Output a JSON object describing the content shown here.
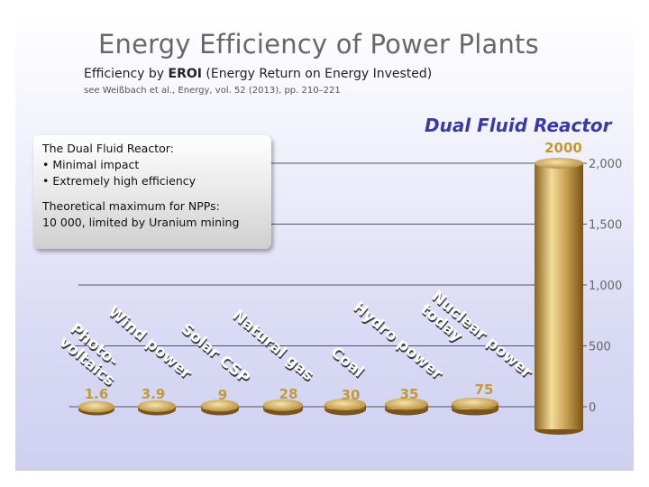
{
  "header": {
    "title": "Energy Efficiency of Power Plants",
    "subtitle_prefix": "Efficiency by ",
    "subtitle_bold": "EROI",
    "subtitle_suffix": " (Energy Return on Energy Invested)",
    "citation": "see Weißbach et al., Energy, vol. 52 (2013), pp. 210–221"
  },
  "highlight_label": "Dual Fluid Reactor",
  "infobox": {
    "line1": "The Dual Fluid Reactor:",
    "line2": "• Minimal impact",
    "line3": "• Extremely high efficiency",
    "line4": "Theoretical maximum for NPPs:",
    "line5": "10 000, limited by Uranium mining"
  },
  "colors": {
    "bar": "#c9a050",
    "bar_dark": "#8a6420",
    "bar_light": "#f3dc9a",
    "value": "#c29a3a",
    "highlight": "#3a3aa0"
  },
  "chart_data": {
    "type": "bar",
    "title": "Energy Efficiency of Power Plants",
    "categories": [
      "Photo-voltaics",
      "Wind power",
      "Solar CSP",
      "Natural gas",
      "Coal",
      "Hydro power",
      "Nuclear power today",
      "Dual Fluid Reactor"
    ],
    "category_lines": [
      [
        "Photo-",
        "voltaics"
      ],
      [
        "Wind power"
      ],
      [
        "Solar CSP"
      ],
      [
        "Natural gas"
      ],
      [
        "Coal"
      ],
      [
        "Hydro power"
      ],
      [
        "Nuclear power",
        "today"
      ],
      []
    ],
    "values": [
      1.6,
      3.9,
      9,
      28,
      30,
      35,
      75,
      2000
    ],
    "value_labels": [
      "1.6",
      "3.9",
      "9",
      "28",
      "30",
      "35",
      "75",
      "2000"
    ],
    "ylim": [
      0,
      2000
    ],
    "yticks": [
      0,
      500,
      1000,
      1500,
      2000
    ],
    "ytick_labels": [
      "0",
      "500",
      "1,000",
      "1,500",
      "2,000"
    ],
    "grid": true
  }
}
